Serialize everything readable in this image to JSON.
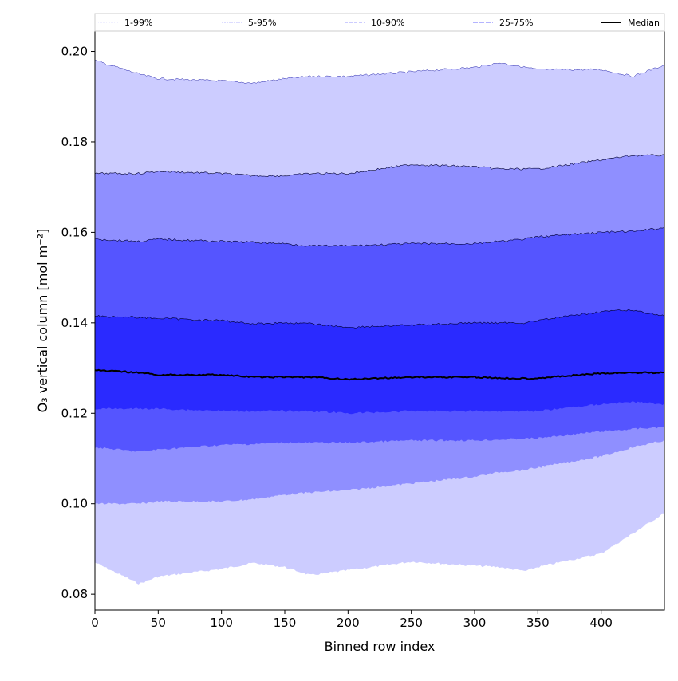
{
  "chart_data": {
    "type": "area",
    "title": "",
    "xlabel": "Binned row index",
    "ylabel": "O₃ vertical column [mol m⁻²]",
    "xlim": [
      0,
      450
    ],
    "ylim": [
      0.0765,
      0.2045
    ],
    "xticks": [
      0,
      50,
      100,
      150,
      200,
      250,
      300,
      350,
      400
    ],
    "xtick_labels": [
      "0",
      "50",
      "100",
      "150",
      "200",
      "250",
      "300",
      "350",
      "400"
    ],
    "yticks": [
      0.08,
      0.1,
      0.12,
      0.14,
      0.16,
      0.18,
      0.2
    ],
    "ytick_labels": [
      "0.08",
      "0.10",
      "0.12",
      "0.14",
      "0.16",
      "0.18",
      "0.20"
    ],
    "grid": false,
    "legend_placement": "top (above plot)",
    "x": [
      0,
      35,
      50,
      100,
      125,
      150,
      170,
      200,
      250,
      300,
      320,
      340,
      350,
      400,
      425,
      450
    ],
    "bands": [
      {
        "name": "1-99%",
        "color": "#ccccff",
        "lower": [
          0.087,
          0.0823,
          0.0839,
          0.0856,
          0.0869,
          0.086,
          0.0842,
          0.0853,
          0.0872,
          0.0863,
          0.086,
          0.0851,
          0.086,
          0.089,
          0.0934,
          0.098
        ],
        "upper": [
          0.198,
          0.195,
          0.194,
          0.1935,
          0.193,
          0.194,
          0.1945,
          0.1945,
          0.1955,
          0.1965,
          0.1975,
          0.1965,
          0.196,
          0.196,
          0.1945,
          0.197
        ]
      },
      {
        "name": "5-95%",
        "color": "#8f8fff",
        "lower": [
          0.1,
          0.1,
          0.1005,
          0.1005,
          0.101,
          0.102,
          0.1025,
          0.103,
          0.1045,
          0.106,
          0.107,
          0.1075,
          0.108,
          0.1105,
          0.1125,
          0.114
        ],
        "upper": [
          0.173,
          0.173,
          0.1735,
          0.173,
          0.1725,
          0.1725,
          0.173,
          0.173,
          0.175,
          0.1745,
          0.174,
          0.174,
          0.174,
          0.176,
          0.177,
          0.177
        ]
      },
      {
        "name": "10-90%",
        "color": "#5555ff",
        "lower": [
          0.1125,
          0.1115,
          0.112,
          0.113,
          0.1132,
          0.1135,
          0.1135,
          0.1135,
          0.114,
          0.114,
          0.1142,
          0.1144,
          0.1145,
          0.116,
          0.1165,
          0.117
        ],
        "upper": [
          0.1585,
          0.158,
          0.1585,
          0.158,
          0.1578,
          0.1575,
          0.157,
          0.157,
          0.1575,
          0.1575,
          0.158,
          0.1585,
          0.159,
          0.16,
          0.1602,
          0.161
        ]
      },
      {
        "name": "25-75%",
        "color": "#2a2aff",
        "lower": [
          0.121,
          0.121,
          0.121,
          0.1205,
          0.1205,
          0.1205,
          0.1205,
          0.12,
          0.1205,
          0.1205,
          0.1205,
          0.1205,
          0.1205,
          0.122,
          0.1225,
          0.122
        ],
        "upper": [
          0.1415,
          0.1412,
          0.141,
          0.1405,
          0.1398,
          0.14,
          0.1398,
          0.139,
          0.1395,
          0.14,
          0.14,
          0.14,
          0.1405,
          0.1425,
          0.1428,
          0.1415
        ]
      }
    ],
    "median": {
      "name": "Median",
      "color": "#000000",
      "values": [
        0.1295,
        0.129,
        0.1285,
        0.1285,
        0.128,
        0.128,
        0.128,
        0.1275,
        0.128,
        0.128,
        0.1278,
        0.1277,
        0.1278,
        0.1288,
        0.129,
        0.129
      ]
    },
    "legend": [
      {
        "label": "1-99%",
        "color": "#e0e0ff"
      },
      {
        "label": "5-95%",
        "color": "#b8b8ff"
      },
      {
        "label": "10-90%",
        "color": "#9a9aff"
      },
      {
        "label": "25-75%",
        "color": "#6a6aff"
      },
      {
        "label": "Median",
        "color": "#000000"
      }
    ]
  }
}
